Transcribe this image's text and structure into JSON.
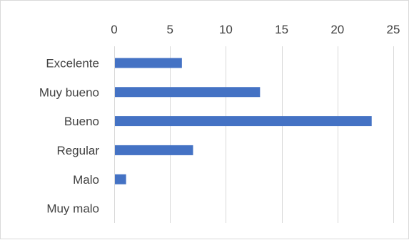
{
  "chart_data": {
    "type": "bar",
    "orientation": "horizontal",
    "categories": [
      "Excelente",
      "Muy bueno",
      "Bueno",
      "Regular",
      "Malo",
      "Muy malo"
    ],
    "values": [
      6,
      13,
      23,
      7,
      1,
      0
    ],
    "xlim": [
      0,
      25
    ],
    "x_ticks": [
      0,
      5,
      10,
      15,
      20,
      25
    ],
    "x_axis_position": "top",
    "grid": true,
    "legend": "none",
    "title": "",
    "xlabel": "",
    "ylabel": "",
    "bar_color": "#4472c4",
    "grid_color": "#d9d9d9"
  }
}
